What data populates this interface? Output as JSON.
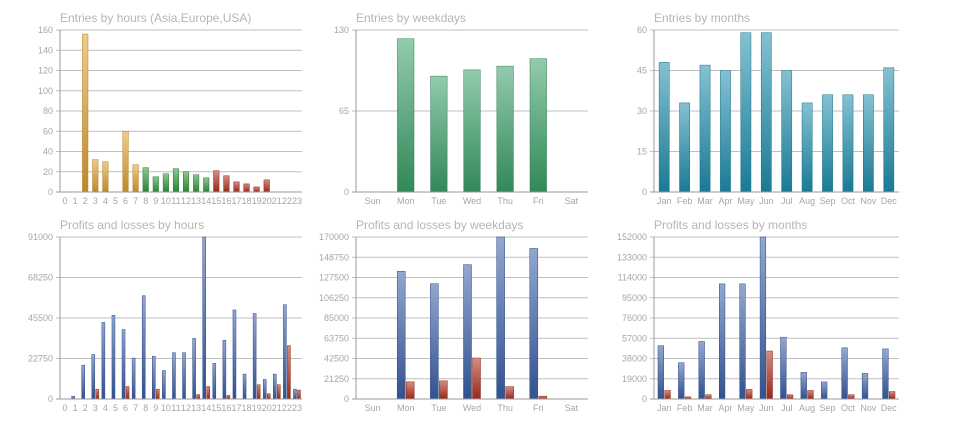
{
  "chart_data": [
    {
      "type": "bar",
      "title": "Entries by hours (Asia,Europe,USA)",
      "categories": [
        "0",
        "1",
        "2",
        "3",
        "4",
        "5",
        "6",
        "7",
        "8",
        "9",
        "10",
        "11",
        "12",
        "13",
        "14",
        "15",
        "16",
        "17",
        "18",
        "19",
        "20",
        "21",
        "22",
        "23"
      ],
      "ylim": [
        0,
        160
      ],
      "yticks": [
        "0",
        "20",
        "40",
        "60",
        "80",
        "100",
        "120",
        "140",
        "160"
      ],
      "values": [
        0,
        0,
        156,
        32,
        30,
        0,
        60,
        27,
        24,
        15,
        18,
        23,
        20,
        17,
        14,
        21,
        16,
        10,
        8,
        5,
        12,
        0,
        0,
        0
      ],
      "bar_colors": [
        "#e0a030",
        "#e0a030",
        "#e0a030",
        "#e0a030",
        "#e0a030",
        "#e0a030",
        "#e0a030",
        "#e0a030",
        "#2f9a3a",
        "#2f9a3a",
        "#2f9a3a",
        "#2f9a3a",
        "#2f9a3a",
        "#2f9a3a",
        "#2f9a3a",
        "#b0301c",
        "#b0301c",
        "#b0301c",
        "#b0301c",
        "#b0301c",
        "#b0301c",
        "#b0301c",
        "#b0301c",
        "#b0301c"
      ],
      "grid": true
    },
    {
      "type": "bar",
      "title": "Entries by weekdays",
      "categories": [
        "Sun",
        "Mon",
        "Tue",
        "Wed",
        "Thu",
        "Fri",
        "Sat"
      ],
      "ylim": [
        0,
        130
      ],
      "yticks": [
        "0",
        "65",
        "130"
      ],
      "values": [
        0,
        123,
        93,
        98,
        101,
        107,
        0
      ],
      "color": "#3aa068",
      "grid": true
    },
    {
      "type": "bar",
      "title": "Entries by months",
      "categories": [
        "Jan",
        "Feb",
        "Mar",
        "Apr",
        "May",
        "Jun",
        "Jul",
        "Aug",
        "Sep",
        "Oct",
        "Nov",
        "Dec"
      ],
      "ylim": [
        0,
        60
      ],
      "yticks": [
        "0",
        "15",
        "30",
        "45",
        "60"
      ],
      "values": [
        48,
        33,
        47,
        45,
        59,
        59,
        45,
        33,
        36,
        36,
        36,
        46
      ],
      "color": "#1f8fae",
      "grid": true
    },
    {
      "type": "bar",
      "title": "Profits and losses by hours",
      "categories": [
        "0",
        "1",
        "2",
        "3",
        "4",
        "5",
        "6",
        "7",
        "8",
        "9",
        "10",
        "11",
        "12",
        "13",
        "14",
        "15",
        "16",
        "17",
        "18",
        "19",
        "20",
        "21",
        "22",
        "23"
      ],
      "ylim": [
        0,
        91000
      ],
      "yticks": [
        "0",
        "22750",
        "45500",
        "68250",
        "91000"
      ],
      "series": [
        {
          "values": [
            0,
            1500,
            19000,
            25000,
            43000,
            47000,
            39000,
            23000,
            58000,
            24000,
            16000,
            26000,
            26000,
            34000,
            91000,
            20000,
            33000,
            50000,
            14000,
            48000,
            11000,
            14000,
            53000,
            5500
          ],
          "color": "#3a5fa8"
        },
        {
          "values": [
            0,
            0,
            0,
            5500,
            0,
            0,
            7000,
            0,
            0,
            5500,
            0,
            0,
            0,
            2500,
            7000,
            0,
            2000,
            0,
            0,
            8000,
            3000,
            8000,
            30000,
            5000
          ],
          "color": "#b0301c"
        }
      ],
      "grid": true
    },
    {
      "type": "bar",
      "title": "Profits and losses by weekdays",
      "categories": [
        "Sun",
        "Mon",
        "Tue",
        "Wed",
        "Thu",
        "Fri",
        "Sat"
      ],
      "ylim": [
        0,
        170000
      ],
      "yticks": [
        "0",
        "21250",
        "42500",
        "63750",
        "85000",
        "106250",
        "127500",
        "148750",
        "170000"
      ],
      "series": [
        {
          "values": [
            0,
            134000,
            121000,
            141000,
            170000,
            158000,
            0
          ],
          "color": "#3a5fa8"
        },
        {
          "values": [
            0,
            18000,
            19000,
            43000,
            13000,
            3000,
            0
          ],
          "color": "#b0301c"
        }
      ],
      "grid": true
    },
    {
      "type": "bar",
      "title": "Profits and losses by months",
      "categories": [
        "Jan",
        "Feb",
        "Mar",
        "Apr",
        "May",
        "Jun",
        "Jul",
        "Aug",
        "Sep",
        "Oct",
        "Nov",
        "Dec"
      ],
      "ylim": [
        0,
        152000
      ],
      "yticks": [
        "0",
        "19000",
        "38000",
        "57000",
        "76000",
        "95000",
        "114000",
        "133000",
        "152000"
      ],
      "series": [
        {
          "values": [
            50000,
            34000,
            54000,
            108000,
            108000,
            152000,
            58000,
            25000,
            16000,
            48000,
            24000,
            47000
          ],
          "color": "#3a5fa8"
        },
        {
          "values": [
            8000,
            2000,
            4000,
            0,
            9000,
            45000,
            4000,
            8000,
            0,
            4000,
            0,
            7000
          ],
          "color": "#b0301c"
        }
      ],
      "grid": true
    }
  ]
}
